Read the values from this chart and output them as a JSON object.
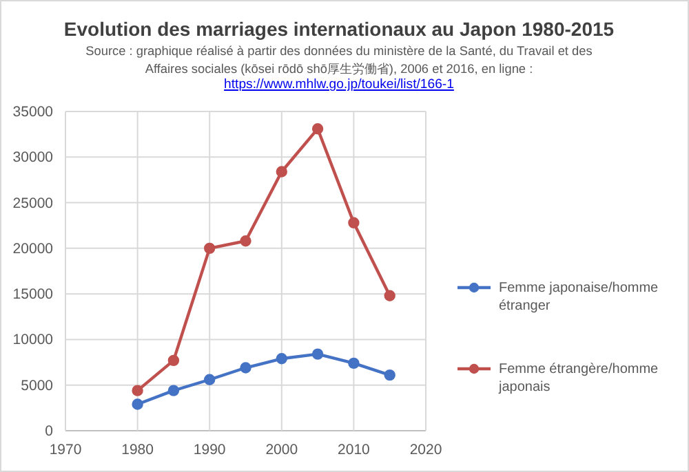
{
  "chart_data": {
    "type": "line",
    "title": "Evolution des marriages internationaux au Japon 1980-2015",
    "subtitle": "Source : graphique réalisé à partir des données du ministère de la Santé, du Travail et des Affaires sociales (kōsei rōdō shō厚生労働省), 2006 et 2016, en ligne :",
    "annotations": [
      "https://www.mhlw.go.jp/toukei/list/166-1"
    ],
    "x": [
      1980,
      1985,
      1990,
      1995,
      2000,
      2005,
      2010,
      2015
    ],
    "series": [
      {
        "name": "Femme japonaise/homme étranger",
        "color": "#4472c4",
        "values": [
          2900,
          4400,
          5600,
          6900,
          7900,
          8400,
          7400,
          6100
        ]
      },
      {
        "name": "Femme étrangère/homme japonais",
        "color": "#c0504d",
        "values": [
          4400,
          7700,
          20000,
          20800,
          28400,
          33100,
          22800,
          14800
        ]
      }
    ],
    "xlim": [
      1970,
      2020
    ],
    "xticks": [
      1970,
      1980,
      1990,
      2000,
      2010,
      2020
    ],
    "ylim": [
      0,
      35000
    ],
    "yticks": [
      0,
      5000,
      10000,
      15000,
      20000,
      25000,
      30000,
      35000
    ],
    "grid": true,
    "legend": "right",
    "marker": "circle",
    "line_style": "solid"
  }
}
